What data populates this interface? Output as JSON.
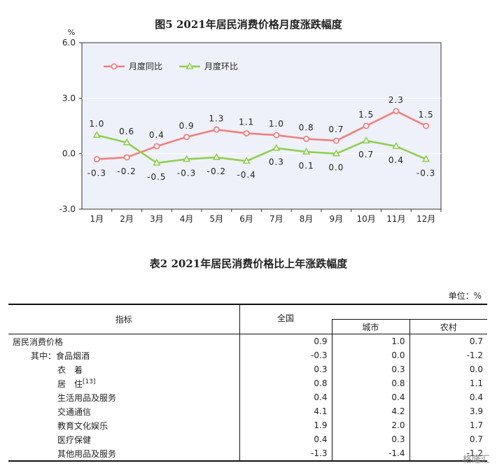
{
  "chart_data": {
    "type": "line",
    "title": "图5   2021年居民消费价格月度涨跌幅度",
    "ylabel": "%",
    "ylim": [
      -3.0,
      6.0
    ],
    "yticks": [
      "6.0",
      "3.0",
      "0.0",
      "-3.0"
    ],
    "categories": [
      "1月",
      "2月",
      "3月",
      "4月",
      "5月",
      "6月",
      "7月",
      "8月",
      "9月",
      "10月",
      "11月",
      "12月"
    ],
    "legend_position": "top-left",
    "series": [
      {
        "name": "月度同比",
        "color": "#f07f7f",
        "values": [
          -0.3,
          -0.2,
          0.4,
          0.9,
          1.3,
          1.1,
          1.0,
          0.8,
          0.7,
          1.5,
          2.3,
          1.5
        ],
        "labels": [
          "-0.3",
          "-0.2",
          "0.4",
          "0.9",
          "1.3",
          "1.1",
          "1.0",
          "0.8",
          "0.7",
          "1.5",
          "2.3",
          "1.5"
        ]
      },
      {
        "name": "月度环比",
        "color": "#8fcf4f",
        "values": [
          1.0,
          0.6,
          -0.5,
          -0.3,
          -0.2,
          -0.4,
          0.3,
          0.1,
          0.0,
          0.7,
          0.4,
          -0.3
        ],
        "labels": [
          "1.0",
          "0.6",
          "-0.5",
          "-0.3",
          "-0.2",
          "-0.4",
          "0.3",
          "0.1",
          "0.0",
          "0.7",
          "0.4",
          "-0.3"
        ]
      }
    ],
    "plot_bg": "#eef1f9"
  },
  "table": {
    "title": "表2   2021年居民消费价格比上年涨跌幅度",
    "unit": "单位：%",
    "headers": {
      "indicator": "指标",
      "national": "全国",
      "city": "城市",
      "rural": "农村"
    },
    "rows": [
      {
        "label": "居民消费价格",
        "sup": "",
        "national": "0.9",
        "city": "1.0",
        "rural": "0.7"
      },
      {
        "label": "其中：食品烟酒",
        "sup": "",
        "national": "-0.3",
        "city": "0.0",
        "rural": "-1.2"
      },
      {
        "label": "衣　着",
        "sup": "",
        "national": "0.3",
        "city": "0.3",
        "rural": "0.0"
      },
      {
        "label": "居　住",
        "sup": "[13]",
        "national": "0.8",
        "city": "0.8",
        "rural": "1.1"
      },
      {
        "label": "生活用品及服务",
        "sup": "",
        "national": "0.4",
        "city": "0.4",
        "rural": "0.4"
      },
      {
        "label": "交通通信",
        "sup": "",
        "national": "4.1",
        "city": "4.2",
        "rural": "3.9"
      },
      {
        "label": "教育文化娱乐",
        "sup": "",
        "national": "1.9",
        "city": "2.0",
        "rural": "1.7"
      },
      {
        "label": "医疗保健",
        "sup": "",
        "national": "0.4",
        "city": "0.3",
        "rural": "0.7"
      },
      {
        "label": "其他用品及服务",
        "sup": "",
        "national": "-1.3",
        "city": "-1.4",
        "rural": "-1.2"
      }
    ]
  },
  "watermark": "格隆汇"
}
